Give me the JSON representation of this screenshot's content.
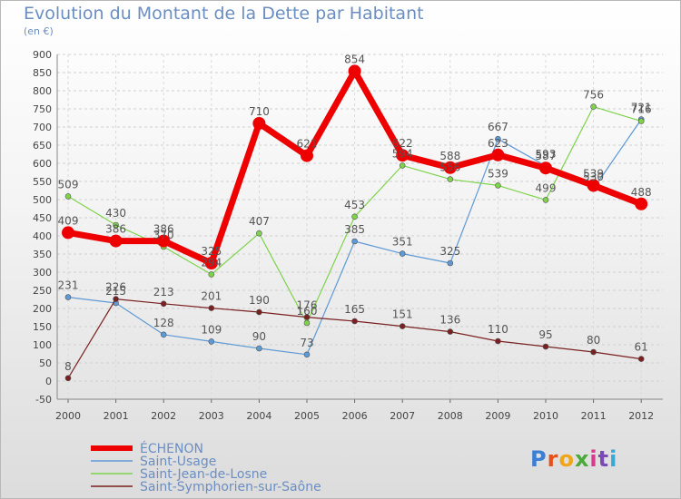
{
  "header": {
    "title": "Evolution du Montant de la Dette par Habitant",
    "subtitle": "(en €)"
  },
  "logo": {
    "text": "Proxiti",
    "colors": [
      "#3b7fd4",
      "#e8501a",
      "#f2a51a",
      "#4aaa3a",
      "#d83a8c",
      "#7a4bb3",
      "#38a9d4"
    ]
  },
  "chart_data": {
    "type": "line",
    "title": "Evolution du Montant de la Dette par Habitant",
    "subtitle": "(en €)",
    "xlabel": "",
    "ylabel": "",
    "x": [
      "2000",
      "2001",
      "2002",
      "2003",
      "2004",
      "2005",
      "2006",
      "2007",
      "2008",
      "2009",
      "2010",
      "2011",
      "2012"
    ],
    "ylim": [
      -50,
      900
    ],
    "yticks": [
      -50,
      0,
      50,
      100,
      150,
      200,
      250,
      300,
      350,
      400,
      450,
      500,
      550,
      600,
      650,
      700,
      750,
      800,
      850,
      900
    ],
    "grid": true,
    "legend_position": "bottom-left",
    "series": [
      {
        "name": "ÉCHENON",
        "color": "#ee0000",
        "width": 7,
        "marker": 7,
        "values": [
          409,
          386,
          386,
          325,
          710,
          621,
          854,
          622,
          588,
          623,
          587,
          539,
          488
        ]
      },
      {
        "name": "Saint-Usage",
        "color": "#5e9ad6",
        "width": 1.2,
        "marker": 3,
        "values": [
          231,
          215,
          128,
          109,
          90,
          73,
          385,
          351,
          325,
          667,
          593,
          530,
          721
        ]
      },
      {
        "name": "Saint-Jean-de-Losne",
        "color": "#7ed34a",
        "width": 1.2,
        "marker": 3,
        "values": [
          509,
          430,
          370,
          294,
          407,
          160,
          453,
          594,
          556,
          539,
          499,
          756,
          716
        ]
      },
      {
        "name": "Saint-Symphorien-sur-Saône",
        "color": "#7a2020",
        "width": 1.2,
        "marker": 3,
        "values": [
          8,
          226,
          213,
          201,
          190,
          176,
          165,
          151,
          136,
          110,
          95,
          80,
          61
        ]
      }
    ]
  }
}
